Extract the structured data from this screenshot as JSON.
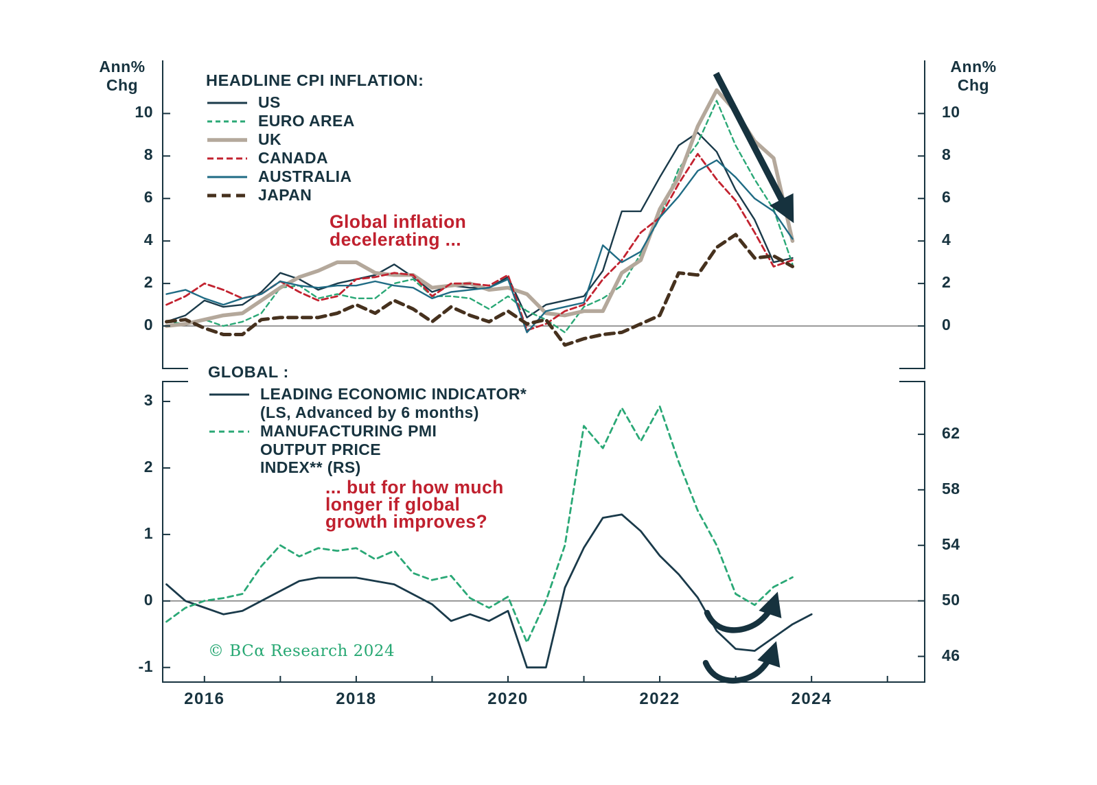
{
  "labels": {
    "ann_pct": "Ann%",
    "chg": "Chg"
  },
  "annotations": {
    "top_lines": [
      "Global inflation",
      "decelerating ..."
    ],
    "bottom_lines": [
      "... but for how much",
      "longer if global",
      "growth improves?"
    ],
    "accent_color": "#c0202e"
  },
  "branding": {
    "copyright": "© BCα Research 2024",
    "color": "#27a873"
  },
  "chart_data": [
    {
      "type": "line",
      "panel": "top",
      "title": "HEADLINE CPI INFLATION:",
      "ylabel_left": "Ann% Chg",
      "ylabel_right": "Ann% Chg",
      "legend_position": "top-left",
      "grid": false,
      "xlim": [
        2015.45,
        2025.5
      ],
      "ylim_left": [
        -2.0,
        12.5
      ],
      "yticks_left": [
        0,
        2,
        4,
        6,
        8,
        10
      ],
      "yticks_right": [
        0,
        2,
        4,
        6,
        8,
        10
      ],
      "baseline": 0,
      "x": [
        2015.5,
        2015.75,
        2016,
        2016.25,
        2016.5,
        2016.75,
        2017,
        2017.25,
        2017.5,
        2017.75,
        2018,
        2018.25,
        2018.5,
        2018.75,
        2019,
        2019.25,
        2019.5,
        2019.75,
        2020,
        2020.25,
        2020.5,
        2020.75,
        2021,
        2021.25,
        2021.5,
        2021.75,
        2022,
        2022.25,
        2022.5,
        2022.75,
        2023,
        2023.25,
        2023.5,
        2023.75
      ],
      "series": [
        {
          "id": "us",
          "legend_lines": [
            "US"
          ],
          "color": "#1a3a4a",
          "width": 2.4,
          "dash": null,
          "axis": "left",
          "values": [
            0.2,
            0.5,
            1.2,
            0.9,
            1.0,
            1.6,
            2.5,
            2.2,
            1.7,
            2.0,
            2.2,
            2.4,
            2.9,
            2.3,
            1.6,
            1.9,
            1.8,
            1.8,
            2.3,
            0.4,
            1.0,
            1.2,
            1.4,
            2.6,
            5.4,
            5.4,
            7.0,
            8.5,
            9.1,
            8.2,
            6.4,
            5.0,
            3.0,
            3.2
          ]
        },
        {
          "id": "euro-area",
          "legend_lines": [
            "EURO AREA"
          ],
          "color": "#2aa876",
          "width": 2.4,
          "dash": "7,5",
          "axis": "left",
          "values": [
            0.2,
            0.1,
            0.3,
            0.0,
            0.2,
            0.6,
            1.8,
            1.9,
            1.3,
            1.5,
            1.3,
            1.3,
            2.0,
            2.2,
            1.4,
            1.4,
            1.3,
            0.8,
            1.4,
            0.7,
            0.3,
            -0.3,
            0.9,
            1.3,
            1.9,
            3.4,
            5.1,
            7.4,
            8.6,
            10.6,
            8.5,
            6.9,
            5.5,
            2.9
          ]
        },
        {
          "id": "uk",
          "legend_lines": [
            "UK"
          ],
          "color": "#b4a89b",
          "width": 5.5,
          "dash": null,
          "axis": "left",
          "values": [
            0.0,
            0.1,
            0.3,
            0.5,
            0.6,
            1.2,
            1.8,
            2.3,
            2.6,
            3.0,
            3.0,
            2.5,
            2.4,
            2.4,
            1.8,
            1.9,
            2.0,
            1.7,
            1.8,
            1.5,
            0.6,
            0.5,
            0.7,
            0.7,
            2.5,
            3.1,
            5.5,
            7.0,
            9.4,
            11.1,
            10.1,
            8.7,
            7.9,
            4.0
          ]
        },
        {
          "id": "canada",
          "legend_lines": [
            "CANADA"
          ],
          "color": "#c2222f",
          "width": 2.8,
          "dash": "9,5",
          "axis": "left",
          "values": [
            1.0,
            1.4,
            2.0,
            1.7,
            1.3,
            1.5,
            2.1,
            1.6,
            1.2,
            1.4,
            2.2,
            2.3,
            2.5,
            2.4,
            1.4,
            2.0,
            2.0,
            1.9,
            2.4,
            -0.2,
            0.1,
            0.7,
            1.0,
            2.2,
            3.1,
            4.4,
            5.1,
            6.7,
            8.1,
            6.9,
            5.9,
            4.4,
            2.8,
            3.1
          ]
        },
        {
          "id": "australia",
          "legend_lines": [
            "AUSTRALIA"
          ],
          "color": "#1f6b84",
          "width": 2.4,
          "dash": null,
          "axis": "left",
          "values": [
            1.5,
            1.7,
            1.3,
            1.0,
            1.3,
            1.5,
            2.1,
            1.9,
            1.8,
            1.9,
            1.9,
            2.1,
            1.9,
            1.8,
            1.3,
            1.6,
            1.7,
            1.8,
            2.2,
            -0.3,
            0.7,
            0.9,
            1.1,
            3.8,
            3.0,
            3.5,
            5.1,
            6.1,
            7.3,
            7.8,
            7.0,
            6.0,
            5.4,
            4.1
          ]
        },
        {
          "id": "japan",
          "legend_lines": [
            "JAPAN"
          ],
          "color": "#46311e",
          "width": 5,
          "dash": "13,8",
          "axis": "left",
          "values": [
            0.2,
            0.3,
            -0.1,
            -0.4,
            -0.4,
            0.3,
            0.4,
            0.4,
            0.4,
            0.6,
            1.0,
            0.6,
            1.2,
            0.8,
            0.2,
            0.9,
            0.5,
            0.2,
            0.7,
            0.1,
            0.3,
            -0.9,
            -0.6,
            -0.4,
            -0.3,
            0.1,
            0.5,
            2.5,
            2.4,
            3.7,
            4.3,
            3.2,
            3.3,
            2.8
          ]
        }
      ]
    },
    {
      "type": "line",
      "panel": "bottom",
      "title": "GLOBAL :",
      "legend_position": "top-left",
      "grid": false,
      "xlim": [
        2015.45,
        2025.5
      ],
      "ylim_left": [
        -1.23,
        3.31
      ],
      "ylim_right": [
        44.1,
        65.85
      ],
      "yticks_left": [
        3,
        2,
        1,
        0,
        -1
      ],
      "yticks_right": [
        62,
        58,
        54,
        50,
        46
      ],
      "xticks": [
        2016,
        2018,
        2020,
        2022,
        2024
      ],
      "xticks_minor": [
        2016,
        2017,
        2018,
        2019,
        2020,
        2021,
        2022,
        2023,
        2024,
        2025
      ],
      "baseline": 0,
      "x": [
        2015.5,
        2015.75,
        2016,
        2016.25,
        2016.5,
        2016.75,
        2017,
        2017.25,
        2017.5,
        2017.75,
        2018,
        2018.25,
        2018.5,
        2018.75,
        2019,
        2019.25,
        2019.5,
        2019.75,
        2020,
        2020.25,
        2020.5,
        2020.75,
        2021,
        2021.25,
        2021.5,
        2021.75,
        2022,
        2022.25,
        2022.5,
        2022.75,
        2023,
        2023.25,
        2023.5,
        2023.75,
        2024
      ],
      "series": [
        {
          "id": "lei",
          "legend_lines": [
            "LEADING ECONOMIC INDICATOR*",
            "(LS, Advanced by 6 months)"
          ],
          "color": "#1a3a4a",
          "width": 2.8,
          "dash": null,
          "axis": "left",
          "values": [
            0.25,
            0.0,
            -0.1,
            -0.2,
            -0.15,
            0.0,
            0.15,
            0.3,
            0.35,
            0.35,
            0.35,
            0.3,
            0.25,
            0.1,
            -0.05,
            -0.3,
            -0.2,
            -0.3,
            -0.15,
            -1.0,
            -1.0,
            0.2,
            0.8,
            1.25,
            1.3,
            1.05,
            0.68,
            0.4,
            0.05,
            -0.45,
            -0.72,
            -0.75,
            -0.55,
            -0.35,
            -0.2
          ]
        },
        {
          "id": "pmi",
          "legend_lines": [
            "MANUFACTURING PMI",
            "OUTPUT PRICE",
            "INDEX** (RS)"
          ],
          "color": "#2aa876",
          "width": 2.8,
          "dash": "8,6",
          "axis": "right",
          "values": [
            48.5,
            49.5,
            50.0,
            50.2,
            50.5,
            52.5,
            54.0,
            53.2,
            53.8,
            53.6,
            53.8,
            53.0,
            53.6,
            52.0,
            51.5,
            51.8,
            50.2,
            49.5,
            50.3,
            47.0,
            50.0,
            54.0,
            62.6,
            61.0,
            63.9,
            61.5,
            64.0,
            60.0,
            56.5,
            54.0,
            50.5,
            49.7,
            51.0,
            51.7,
            null
          ]
        }
      ]
    }
  ]
}
